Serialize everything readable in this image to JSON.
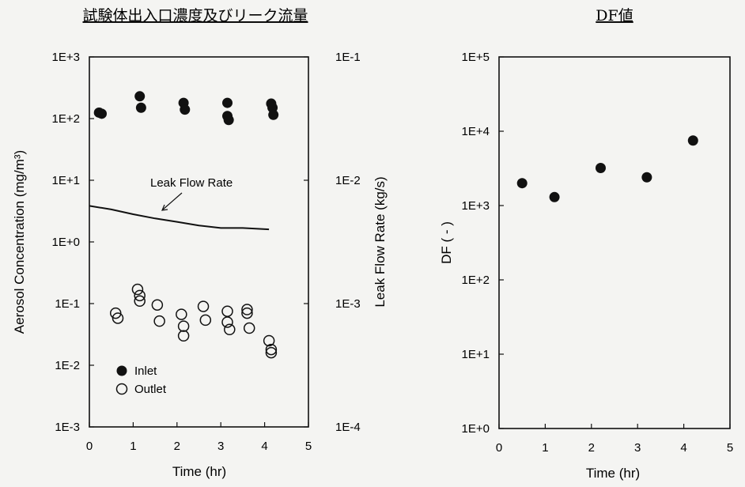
{
  "chart_data": [
    {
      "type": "scatter",
      "title": "試験体出入口濃度及びリーク流量",
      "xlabel": "Time (hr)",
      "ylabel": "Aerosol Concentration (mg/m³)",
      "y2label": "Leak Flow Rate (kg/s)",
      "xlim": [
        0,
        5
      ],
      "ylim": [
        0.001,
        1000
      ],
      "y2lim": [
        0.0001,
        0.1
      ],
      "yscale": "log",
      "x_ticks": [
        "0",
        "1",
        "2",
        "3",
        "4",
        "5"
      ],
      "y_ticks": [
        "1E-3",
        "1E-2",
        "1E-1",
        "1E+0",
        "1E+1",
        "1E+2",
        "1E+3"
      ],
      "y2_ticks": [
        "1E-4",
        "1E-3",
        "1E-2",
        "1E-1"
      ],
      "legend_position": "bottom-left",
      "series": [
        {
          "name": "Inlet",
          "marker": "filled-circle",
          "x": [
            0.22,
            0.28,
            1.15,
            1.18,
            2.15,
            2.18,
            3.15,
            3.15,
            3.18,
            4.15,
            4.18,
            4.2
          ],
          "y": [
            125,
            120,
            230,
            150,
            180,
            140,
            180,
            110,
            95,
            175,
            150,
            115
          ]
        },
        {
          "name": "Outlet",
          "marker": "open-circle",
          "x": [
            0.6,
            0.65,
            1.1,
            1.15,
            1.15,
            1.55,
            1.6,
            2.1,
            2.15,
            2.15,
            2.6,
            2.65,
            3.15,
            3.15,
            3.2,
            3.6,
            3.6,
            3.65,
            4.1,
            4.15,
            4.15
          ],
          "y": [
            0.07,
            0.058,
            0.17,
            0.135,
            0.11,
            0.095,
            0.052,
            0.067,
            0.043,
            0.03,
            0.09,
            0.054,
            0.075,
            0.05,
            0.038,
            0.08,
            0.07,
            0.04,
            0.025,
            0.018,
            0.016
          ]
        }
      ],
      "leak_flow_rate": {
        "label": "Leak Flow Rate",
        "axis": "right",
        "x": [
          0,
          0.5,
          1,
          1.5,
          2,
          2.5,
          3,
          3.5,
          4.1
        ],
        "y": [
          0.0062,
          0.0058,
          0.0053,
          0.0049,
          0.0046,
          0.0043,
          0.0041,
          0.0041,
          0.004
        ]
      }
    },
    {
      "type": "scatter",
      "title": "DF値",
      "xlabel": "Time (hr)",
      "ylabel": "DF ( - )",
      "xlim": [
        0,
        5
      ],
      "ylim": [
        1,
        100000
      ],
      "yscale": "log",
      "x_ticks": [
        "0",
        "1",
        "2",
        "3",
        "4",
        "5"
      ],
      "y_ticks": [
        "1E+0",
        "1E+1",
        "1E+2",
        "1E+3",
        "1E+4",
        "1E+5"
      ],
      "series": [
        {
          "marker": "filled-circle",
          "x": [
            0.5,
            1.2,
            2.2,
            3.2,
            4.2
          ],
          "y": [
            2000,
            1300,
            3200,
            2400,
            7500
          ]
        }
      ]
    }
  ]
}
